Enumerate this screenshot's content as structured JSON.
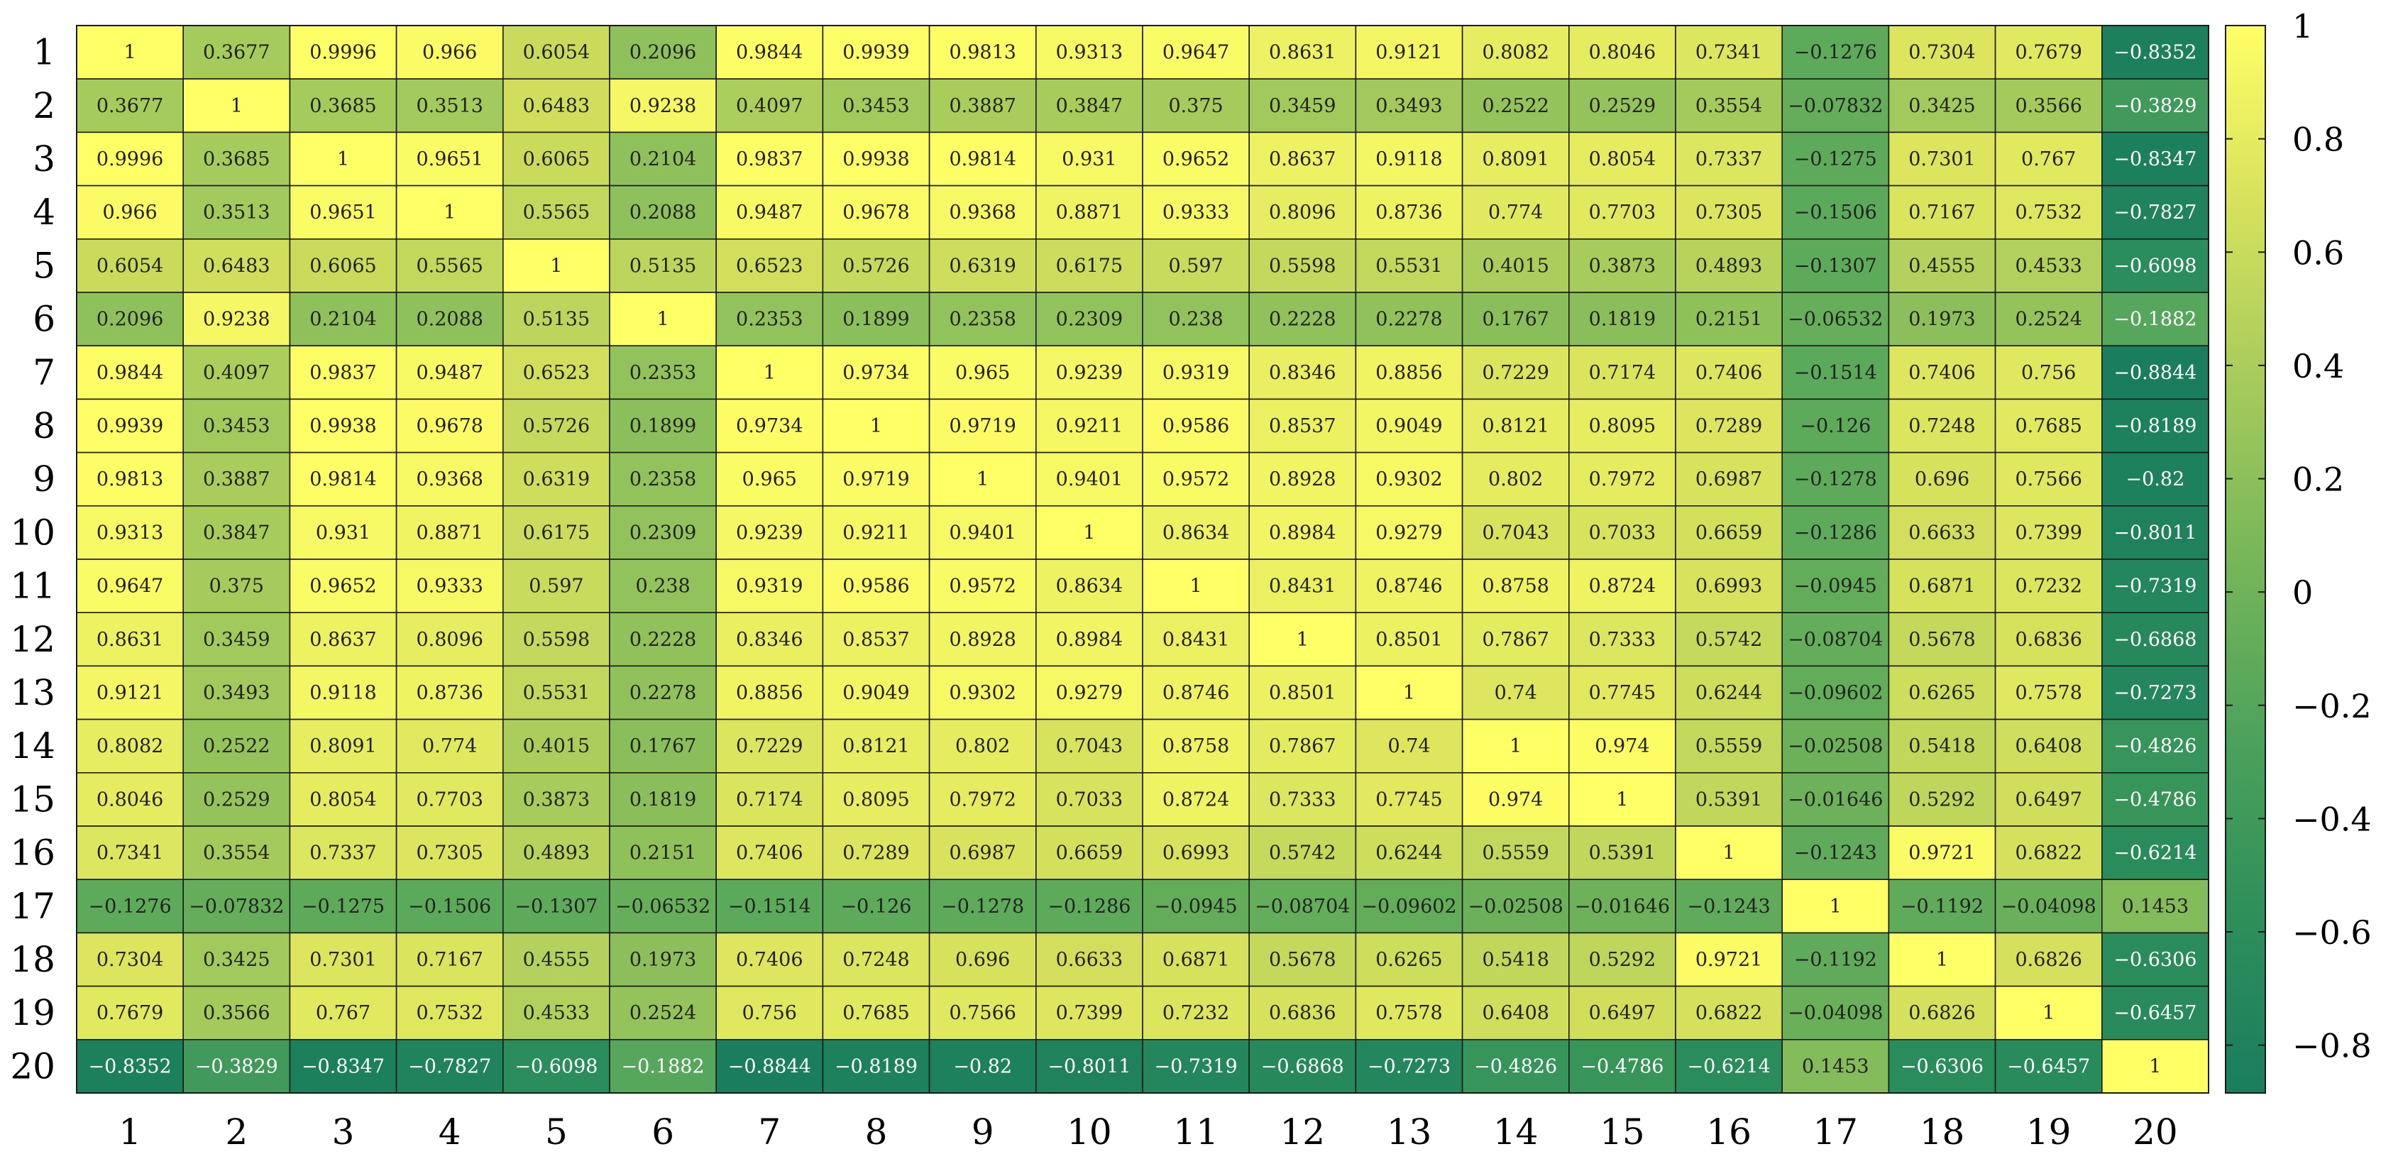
{
  "chart_data": {
    "type": "heatmap",
    "title": "",
    "xlabel": "",
    "ylabel": "",
    "x_categories": [
      "1",
      "2",
      "3",
      "4",
      "5",
      "6",
      "7",
      "8",
      "9",
      "10",
      "11",
      "12",
      "13",
      "14",
      "15",
      "16",
      "17",
      "18",
      "19",
      "20"
    ],
    "y_categories": [
      "1",
      "2",
      "3",
      "4",
      "5",
      "6",
      "7",
      "8",
      "9",
      "10",
      "11",
      "12",
      "13",
      "14",
      "15",
      "16",
      "17",
      "18",
      "19",
      "20"
    ],
    "cell_labels": [
      [
        "1",
        "0.3677",
        "0.9996",
        "0.966",
        "0.6054",
        "0.2096",
        "0.9844",
        "0.9939",
        "0.9813",
        "0.9313",
        "0.9647",
        "0.8631",
        "0.9121",
        "0.8082",
        "0.8046",
        "0.7341",
        "−0.1276",
        "0.7304",
        "0.7679",
        "−0.8352"
      ],
      [
        "0.3677",
        "1",
        "0.3685",
        "0.3513",
        "0.6483",
        "0.9238",
        "0.4097",
        "0.3453",
        "0.3887",
        "0.3847",
        "0.375",
        "0.3459",
        "0.3493",
        "0.2522",
        "0.2529",
        "0.3554",
        "−0.07832",
        "0.3425",
        "0.3566",
        "−0.3829"
      ],
      [
        "0.9996",
        "0.3685",
        "1",
        "0.9651",
        "0.6065",
        "0.2104",
        "0.9837",
        "0.9938",
        "0.9814",
        "0.931",
        "0.9652",
        "0.8637",
        "0.9118",
        "0.8091",
        "0.8054",
        "0.7337",
        "−0.1275",
        "0.7301",
        "0.767",
        "−0.8347"
      ],
      [
        "0.966",
        "0.3513",
        "0.9651",
        "1",
        "0.5565",
        "0.2088",
        "0.9487",
        "0.9678",
        "0.9368",
        "0.8871",
        "0.9333",
        "0.8096",
        "0.8736",
        "0.774",
        "0.7703",
        "0.7305",
        "−0.1506",
        "0.7167",
        "0.7532",
        "−0.7827"
      ],
      [
        "0.6054",
        "0.6483",
        "0.6065",
        "0.5565",
        "1",
        "0.5135",
        "0.6523",
        "0.5726",
        "0.6319",
        "0.6175",
        "0.597",
        "0.5598",
        "0.5531",
        "0.4015",
        "0.3873",
        "0.4893",
        "−0.1307",
        "0.4555",
        "0.4533",
        "−0.6098"
      ],
      [
        "0.2096",
        "0.9238",
        "0.2104",
        "0.2088",
        "0.5135",
        "1",
        "0.2353",
        "0.1899",
        "0.2358",
        "0.2309",
        "0.238",
        "0.2228",
        "0.2278",
        "0.1767",
        "0.1819",
        "0.2151",
        "−0.06532",
        "0.1973",
        "0.2524",
        "−0.1882"
      ],
      [
        "0.9844",
        "0.4097",
        "0.9837",
        "0.9487",
        "0.6523",
        "0.2353",
        "1",
        "0.9734",
        "0.965",
        "0.9239",
        "0.9319",
        "0.8346",
        "0.8856",
        "0.7229",
        "0.7174",
        "0.7406",
        "−0.1514",
        "0.7406",
        "0.756",
        "−0.8844"
      ],
      [
        "0.9939",
        "0.3453",
        "0.9938",
        "0.9678",
        "0.5726",
        "0.1899",
        "0.9734",
        "1",
        "0.9719",
        "0.9211",
        "0.9586",
        "0.8537",
        "0.9049",
        "0.8121",
        "0.8095",
        "0.7289",
        "−0.126",
        "0.7248",
        "0.7685",
        "−0.8189"
      ],
      [
        "0.9813",
        "0.3887",
        "0.9814",
        "0.9368",
        "0.6319",
        "0.2358",
        "0.965",
        "0.9719",
        "1",
        "0.9401",
        "0.9572",
        "0.8928",
        "0.9302",
        "0.802",
        "0.7972",
        "0.6987",
        "−0.1278",
        "0.696",
        "0.7566",
        "−0.82"
      ],
      [
        "0.9313",
        "0.3847",
        "0.931",
        "0.8871",
        "0.6175",
        "0.2309",
        "0.9239",
        "0.9211",
        "0.9401",
        "1",
        "0.8634",
        "0.8984",
        "0.9279",
        "0.7043",
        "0.7033",
        "0.6659",
        "−0.1286",
        "0.6633",
        "0.7399",
        "−0.8011"
      ],
      [
        "0.9647",
        "0.375",
        "0.9652",
        "0.9333",
        "0.597",
        "0.238",
        "0.9319",
        "0.9586",
        "0.9572",
        "0.8634",
        "1",
        "0.8431",
        "0.8746",
        "0.8758",
        "0.8724",
        "0.6993",
        "−0.0945",
        "0.6871",
        "0.7232",
        "−0.7319"
      ],
      [
        "0.8631",
        "0.3459",
        "0.8637",
        "0.8096",
        "0.5598",
        "0.2228",
        "0.8346",
        "0.8537",
        "0.8928",
        "0.8984",
        "0.8431",
        "1",
        "0.8501",
        "0.7867",
        "0.7333",
        "0.5742",
        "−0.08704",
        "0.5678",
        "0.6836",
        "−0.6868"
      ],
      [
        "0.9121",
        "0.3493",
        "0.9118",
        "0.8736",
        "0.5531",
        "0.2278",
        "0.8856",
        "0.9049",
        "0.9302",
        "0.9279",
        "0.8746",
        "0.8501",
        "1",
        "0.74",
        "0.7745",
        "0.6244",
        "−0.09602",
        "0.6265",
        "0.7578",
        "−0.7273"
      ],
      [
        "0.8082",
        "0.2522",
        "0.8091",
        "0.774",
        "0.4015",
        "0.1767",
        "0.7229",
        "0.8121",
        "0.802",
        "0.7043",
        "0.8758",
        "0.7867",
        "0.74",
        "1",
        "0.974",
        "0.5559",
        "−0.02508",
        "0.5418",
        "0.6408",
        "−0.4826"
      ],
      [
        "0.8046",
        "0.2529",
        "0.8054",
        "0.7703",
        "0.3873",
        "0.1819",
        "0.7174",
        "0.8095",
        "0.7972",
        "0.7033",
        "0.8724",
        "0.7333",
        "0.7745",
        "0.974",
        "1",
        "0.5391",
        "−0.01646",
        "0.5292",
        "0.6497",
        "−0.4786"
      ],
      [
        "0.7341",
        "0.3554",
        "0.7337",
        "0.7305",
        "0.4893",
        "0.2151",
        "0.7406",
        "0.7289",
        "0.6987",
        "0.6659",
        "0.6993",
        "0.5742",
        "0.6244",
        "0.5559",
        "0.5391",
        "1",
        "−0.1243",
        "0.9721",
        "0.6822",
        "−0.6214"
      ],
      [
        "−0.1276",
        "−0.07832",
        "−0.1275",
        "−0.1506",
        "−0.1307",
        "−0.06532",
        "−0.1514",
        "−0.126",
        "−0.1278",
        "−0.1286",
        "−0.0945",
        "−0.08704",
        "−0.09602",
        "−0.02508",
        "−0.01646",
        "−0.1243",
        "1",
        "−0.1192",
        "−0.04098",
        "0.1453"
      ],
      [
        "0.7304",
        "0.3425",
        "0.7301",
        "0.7167",
        "0.4555",
        "0.1973",
        "0.7406",
        "0.7248",
        "0.696",
        "0.6633",
        "0.6871",
        "0.5678",
        "0.6265",
        "0.5418",
        "0.5292",
        "0.9721",
        "−0.1192",
        "1",
        "0.6826",
        "−0.6306"
      ],
      [
        "0.7679",
        "0.3566",
        "0.767",
        "0.7532",
        "0.4533",
        "0.2524",
        "0.756",
        "0.7685",
        "0.7566",
        "0.7399",
        "0.7232",
        "0.6836",
        "0.7578",
        "0.6408",
        "0.6497",
        "0.6822",
        "−0.04098",
        "0.6826",
        "1",
        "−0.6457"
      ],
      [
        "−0.8352",
        "−0.3829",
        "−0.8347",
        "−0.7827",
        "−0.6098",
        "−0.1882",
        "−0.8844",
        "−0.8189",
        "−0.82",
        "−0.8011",
        "−0.7319",
        "−0.6868",
        "−0.7273",
        "−0.4826",
        "−0.4786",
        "−0.6214",
        "0.1453",
        "−0.6306",
        "−0.6457",
        "1"
      ]
    ],
    "colorbar": {
      "min": -0.8844,
      "max": 1,
      "ticks": [
        1,
        0.8,
        0.6,
        0.4,
        0.2,
        0,
        -0.2,
        -0.4,
        -0.6,
        -0.8
      ],
      "tick_labels": [
        "1",
        "0.8",
        "0.6",
        "0.4",
        "0.2",
        "0",
        "−0.2",
        "−0.4",
        "−0.6",
        "−0.8"
      ],
      "position": "right"
    },
    "colormap": [
      "#1a7d5e",
      "#2e8f5a",
      "#4da25b",
      "#77b65a",
      "#a6cb5c",
      "#d6e15c",
      "#ffff66"
    ],
    "text_color_dark": "#222222",
    "text_color_light": "#ffffff",
    "grid": true
  }
}
